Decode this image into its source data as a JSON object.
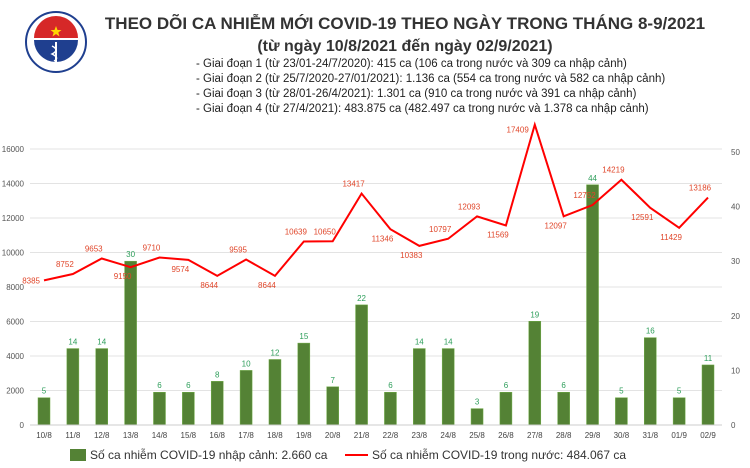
{
  "title": "THEO DÕI CA NHIỄM MỚI COVID-19 THEO NGÀY TRONG THÁNG 8-9/2021",
  "subtitle": "(từ ngày 10/8/2021 đến ngày 02/9/2021)",
  "logo_text": "BỘ Y TẾ · MINISTRY OF HEALTH",
  "notes": [
    "- Giai đoạn 1 (từ 23/01-24/7/2020): 415 ca (106 ca trong nước và 309 ca nhập cảnh)",
    "- Giai đoạn 2 (từ 25/7/2020-27/01/2021): 1.136 ca (554 ca trong nước và 582 ca nhập cảnh)",
    "- Giai đoạn 3 (từ 28/01-26/4/2021): 1.301 ca (910 ca trong nước và 391 ca nhập cảnh)",
    "- Giai đoạn 4 (từ 27/4/2021): 483.875 ca (482.497 ca trong nước và 1.378 ca nhập cảnh)"
  ],
  "chart_data": {
    "type": "bar+line",
    "categories": [
      "10/8",
      "11/8",
      "12/8",
      "13/8",
      "14/8",
      "15/8",
      "16/8",
      "17/8",
      "18/8",
      "19/8",
      "20/8",
      "21/8",
      "22/8",
      "23/8",
      "24/8",
      "25/8",
      "26/8",
      "27/8",
      "28/8",
      "29/8",
      "30/8",
      "31/8",
      "01/9",
      "02/9"
    ],
    "series": [
      {
        "name": "Số ca nhiễm COVID-19 nhập cảnh: 2.660 ca",
        "type": "bar",
        "axis": "right",
        "color": "#548235",
        "values": [
          5,
          14,
          14,
          30,
          6,
          6,
          8,
          10,
          12,
          15,
          7,
          22,
          6,
          14,
          14,
          3,
          6,
          19,
          6,
          44,
          5,
          16,
          5,
          11
        ]
      },
      {
        "name": "Số ca nhiễm COVID-19 trong nước: 484.067 ca",
        "type": "line",
        "axis": "left",
        "color": "#ff0000",
        "values": [
          8385,
          8752,
          9653,
          9150,
          9710,
          9574,
          8644,
          9595,
          8644,
          10639,
          10650,
          13417,
          11346,
          10383,
          10797,
          12093,
          11569,
          17409,
          12097,
          12752,
          14219,
          12591,
          11429,
          13186
        ]
      }
    ],
    "left_ylim": [
      0,
      16000
    ],
    "left_ticks": [
      0,
      2000,
      4000,
      6000,
      8000,
      10000,
      12000,
      14000,
      16000
    ],
    "right_ylim": [
      0,
      50
    ],
    "right_ticks": [
      0,
      10,
      20,
      30,
      40,
      50
    ],
    "grid": true,
    "legend": "bottom"
  }
}
